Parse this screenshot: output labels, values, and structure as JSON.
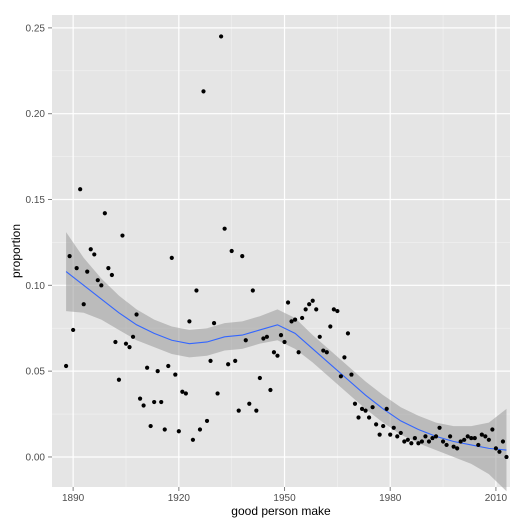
{
  "chart_data": {
    "type": "scatter",
    "xlabel": "good person make",
    "ylabel": "proportion",
    "xlim": [
      1884,
      2014
    ],
    "ylim": [
      -0.0175,
      0.2575
    ],
    "x_ticks": [
      1890,
      1920,
      1950,
      1980,
      2010
    ],
    "y_ticks": [
      0.0,
      0.05,
      0.1,
      0.15,
      0.2,
      0.25
    ],
    "y_tick_labels": [
      "0.00",
      "0.05",
      "0.10",
      "0.15",
      "0.20",
      "0.25"
    ],
    "grid": true,
    "legend": "none",
    "colors": {
      "panel_background": "#e5e5e5",
      "grid_major": "#ffffff",
      "grid_minor": "#f2f2f2",
      "points": "#000000",
      "smooth_line": "#3366ff",
      "confidence_band": "#999999"
    },
    "points": [
      [
        1888,
        0.053
      ],
      [
        1889,
        0.117
      ],
      [
        1890,
        0.074
      ],
      [
        1891,
        0.11
      ],
      [
        1892,
        0.156
      ],
      [
        1893,
        0.089
      ],
      [
        1894,
        0.108
      ],
      [
        1895,
        0.121
      ],
      [
        1896,
        0.118
      ],
      [
        1897,
        0.103
      ],
      [
        1898,
        0.1
      ],
      [
        1899,
        0.142
      ],
      [
        1900,
        0.11
      ],
      [
        1901,
        0.106
      ],
      [
        1902,
        0.067
      ],
      [
        1903,
        0.045
      ],
      [
        1904,
        0.129
      ],
      [
        1905,
        0.066
      ],
      [
        1906,
        0.064
      ],
      [
        1907,
        0.07
      ],
      [
        1908,
        0.083
      ],
      [
        1909,
        0.034
      ],
      [
        1910,
        0.03
      ],
      [
        1911,
        0.052
      ],
      [
        1912,
        0.018
      ],
      [
        1913,
        0.032
      ],
      [
        1914,
        0.05
      ],
      [
        1915,
        0.032
      ],
      [
        1916,
        0.016
      ],
      [
        1917,
        0.053
      ],
      [
        1918,
        0.116
      ],
      [
        1919,
        0.048
      ],
      [
        1920,
        0.015
      ],
      [
        1921,
        0.038
      ],
      [
        1922,
        0.037
      ],
      [
        1923,
        0.079
      ],
      [
        1924,
        0.01
      ],
      [
        1925,
        0.097
      ],
      [
        1926,
        0.016
      ],
      [
        1927,
        0.213
      ],
      [
        1928,
        0.021
      ],
      [
        1929,
        0.056
      ],
      [
        1930,
        0.078
      ],
      [
        1931,
        0.037
      ],
      [
        1932,
        0.245
      ],
      [
        1933,
        0.133
      ],
      [
        1934,
        0.054
      ],
      [
        1935,
        0.12
      ],
      [
        1936,
        0.056
      ],
      [
        1937,
        0.027
      ],
      [
        1938,
        0.117
      ],
      [
        1939,
        0.068
      ],
      [
        1940,
        0.031
      ],
      [
        1941,
        0.097
      ],
      [
        1942,
        0.027
      ],
      [
        1943,
        0.046
      ],
      [
        1944,
        0.069
      ],
      [
        1945,
        0.07
      ],
      [
        1946,
        0.039
      ],
      [
        1947,
        0.061
      ],
      [
        1948,
        0.059
      ],
      [
        1949,
        0.071
      ],
      [
        1950,
        0.067
      ],
      [
        1951,
        0.09
      ],
      [
        1952,
        0.079
      ],
      [
        1953,
        0.08
      ],
      [
        1954,
        0.061
      ],
      [
        1955,
        0.081
      ],
      [
        1956,
        0.086
      ],
      [
        1957,
        0.089
      ],
      [
        1958,
        0.091
      ],
      [
        1959,
        0.086
      ],
      [
        1960,
        0.07
      ],
      [
        1961,
        0.062
      ],
      [
        1962,
        0.061
      ],
      [
        1963,
        0.076
      ],
      [
        1964,
        0.086
      ],
      [
        1965,
        0.085
      ],
      [
        1966,
        0.047
      ],
      [
        1967,
        0.058
      ],
      [
        1968,
        0.072
      ],
      [
        1969,
        0.048
      ],
      [
        1970,
        0.031
      ],
      [
        1971,
        0.023
      ],
      [
        1972,
        0.028
      ],
      [
        1973,
        0.027
      ],
      [
        1974,
        0.023
      ],
      [
        1975,
        0.029
      ],
      [
        1976,
        0.019
      ],
      [
        1977,
        0.013
      ],
      [
        1978,
        0.018
      ],
      [
        1979,
        0.028
      ],
      [
        1980,
        0.013
      ],
      [
        1981,
        0.017
      ],
      [
        1982,
        0.012
      ],
      [
        1983,
        0.014
      ],
      [
        1984,
        0.009
      ],
      [
        1985,
        0.01
      ],
      [
        1986,
        0.008
      ],
      [
        1987,
        0.011
      ],
      [
        1988,
        0.008
      ],
      [
        1989,
        0.009
      ],
      [
        1990,
        0.012
      ],
      [
        1991,
        0.009
      ],
      [
        1992,
        0.011
      ],
      [
        1993,
        0.012
      ],
      [
        1994,
        0.017
      ],
      [
        1995,
        0.009
      ],
      [
        1996,
        0.007
      ],
      [
        1997,
        0.012
      ],
      [
        1998,
        0.006
      ],
      [
        1999,
        0.005
      ],
      [
        2000,
        0.009
      ],
      [
        2001,
        0.01
      ],
      [
        2002,
        0.012
      ],
      [
        2003,
        0.011
      ],
      [
        2004,
        0.011
      ],
      [
        2005,
        0.007
      ],
      [
        2006,
        0.013
      ],
      [
        2007,
        0.012
      ],
      [
        2008,
        0.01
      ],
      [
        2009,
        0.016
      ],
      [
        2010,
        0.005
      ],
      [
        2011,
        0.003
      ],
      [
        2012,
        0.009
      ],
      [
        2013,
        0.0
      ]
    ],
    "smooth": {
      "x": [
        1888,
        1893,
        1898,
        1903,
        1908,
        1913,
        1918,
        1923,
        1928,
        1933,
        1938,
        1943,
        1948,
        1953,
        1958,
        1963,
        1968,
        1973,
        1978,
        1983,
        1988,
        1993,
        1998,
        2003,
        2008,
        2013
      ],
      "y": [
        0.108,
        0.1,
        0.092,
        0.084,
        0.077,
        0.072,
        0.068,
        0.066,
        0.067,
        0.07,
        0.071,
        0.074,
        0.077,
        0.072,
        0.063,
        0.054,
        0.045,
        0.036,
        0.028,
        0.021,
        0.016,
        0.012,
        0.009,
        0.007,
        0.005,
        0.004
      ],
      "lower": [
        0.085,
        0.084,
        0.08,
        0.074,
        0.068,
        0.064,
        0.06,
        0.058,
        0.059,
        0.062,
        0.063,
        0.066,
        0.068,
        0.063,
        0.055,
        0.046,
        0.037,
        0.028,
        0.02,
        0.013,
        0.008,
        0.004,
        0.0,
        -0.004,
        -0.01,
        -0.02
      ],
      "upper": [
        0.131,
        0.116,
        0.104,
        0.094,
        0.086,
        0.08,
        0.076,
        0.074,
        0.075,
        0.078,
        0.079,
        0.082,
        0.086,
        0.081,
        0.071,
        0.062,
        0.053,
        0.044,
        0.036,
        0.029,
        0.024,
        0.02,
        0.018,
        0.018,
        0.02,
        0.028
      ]
    }
  }
}
